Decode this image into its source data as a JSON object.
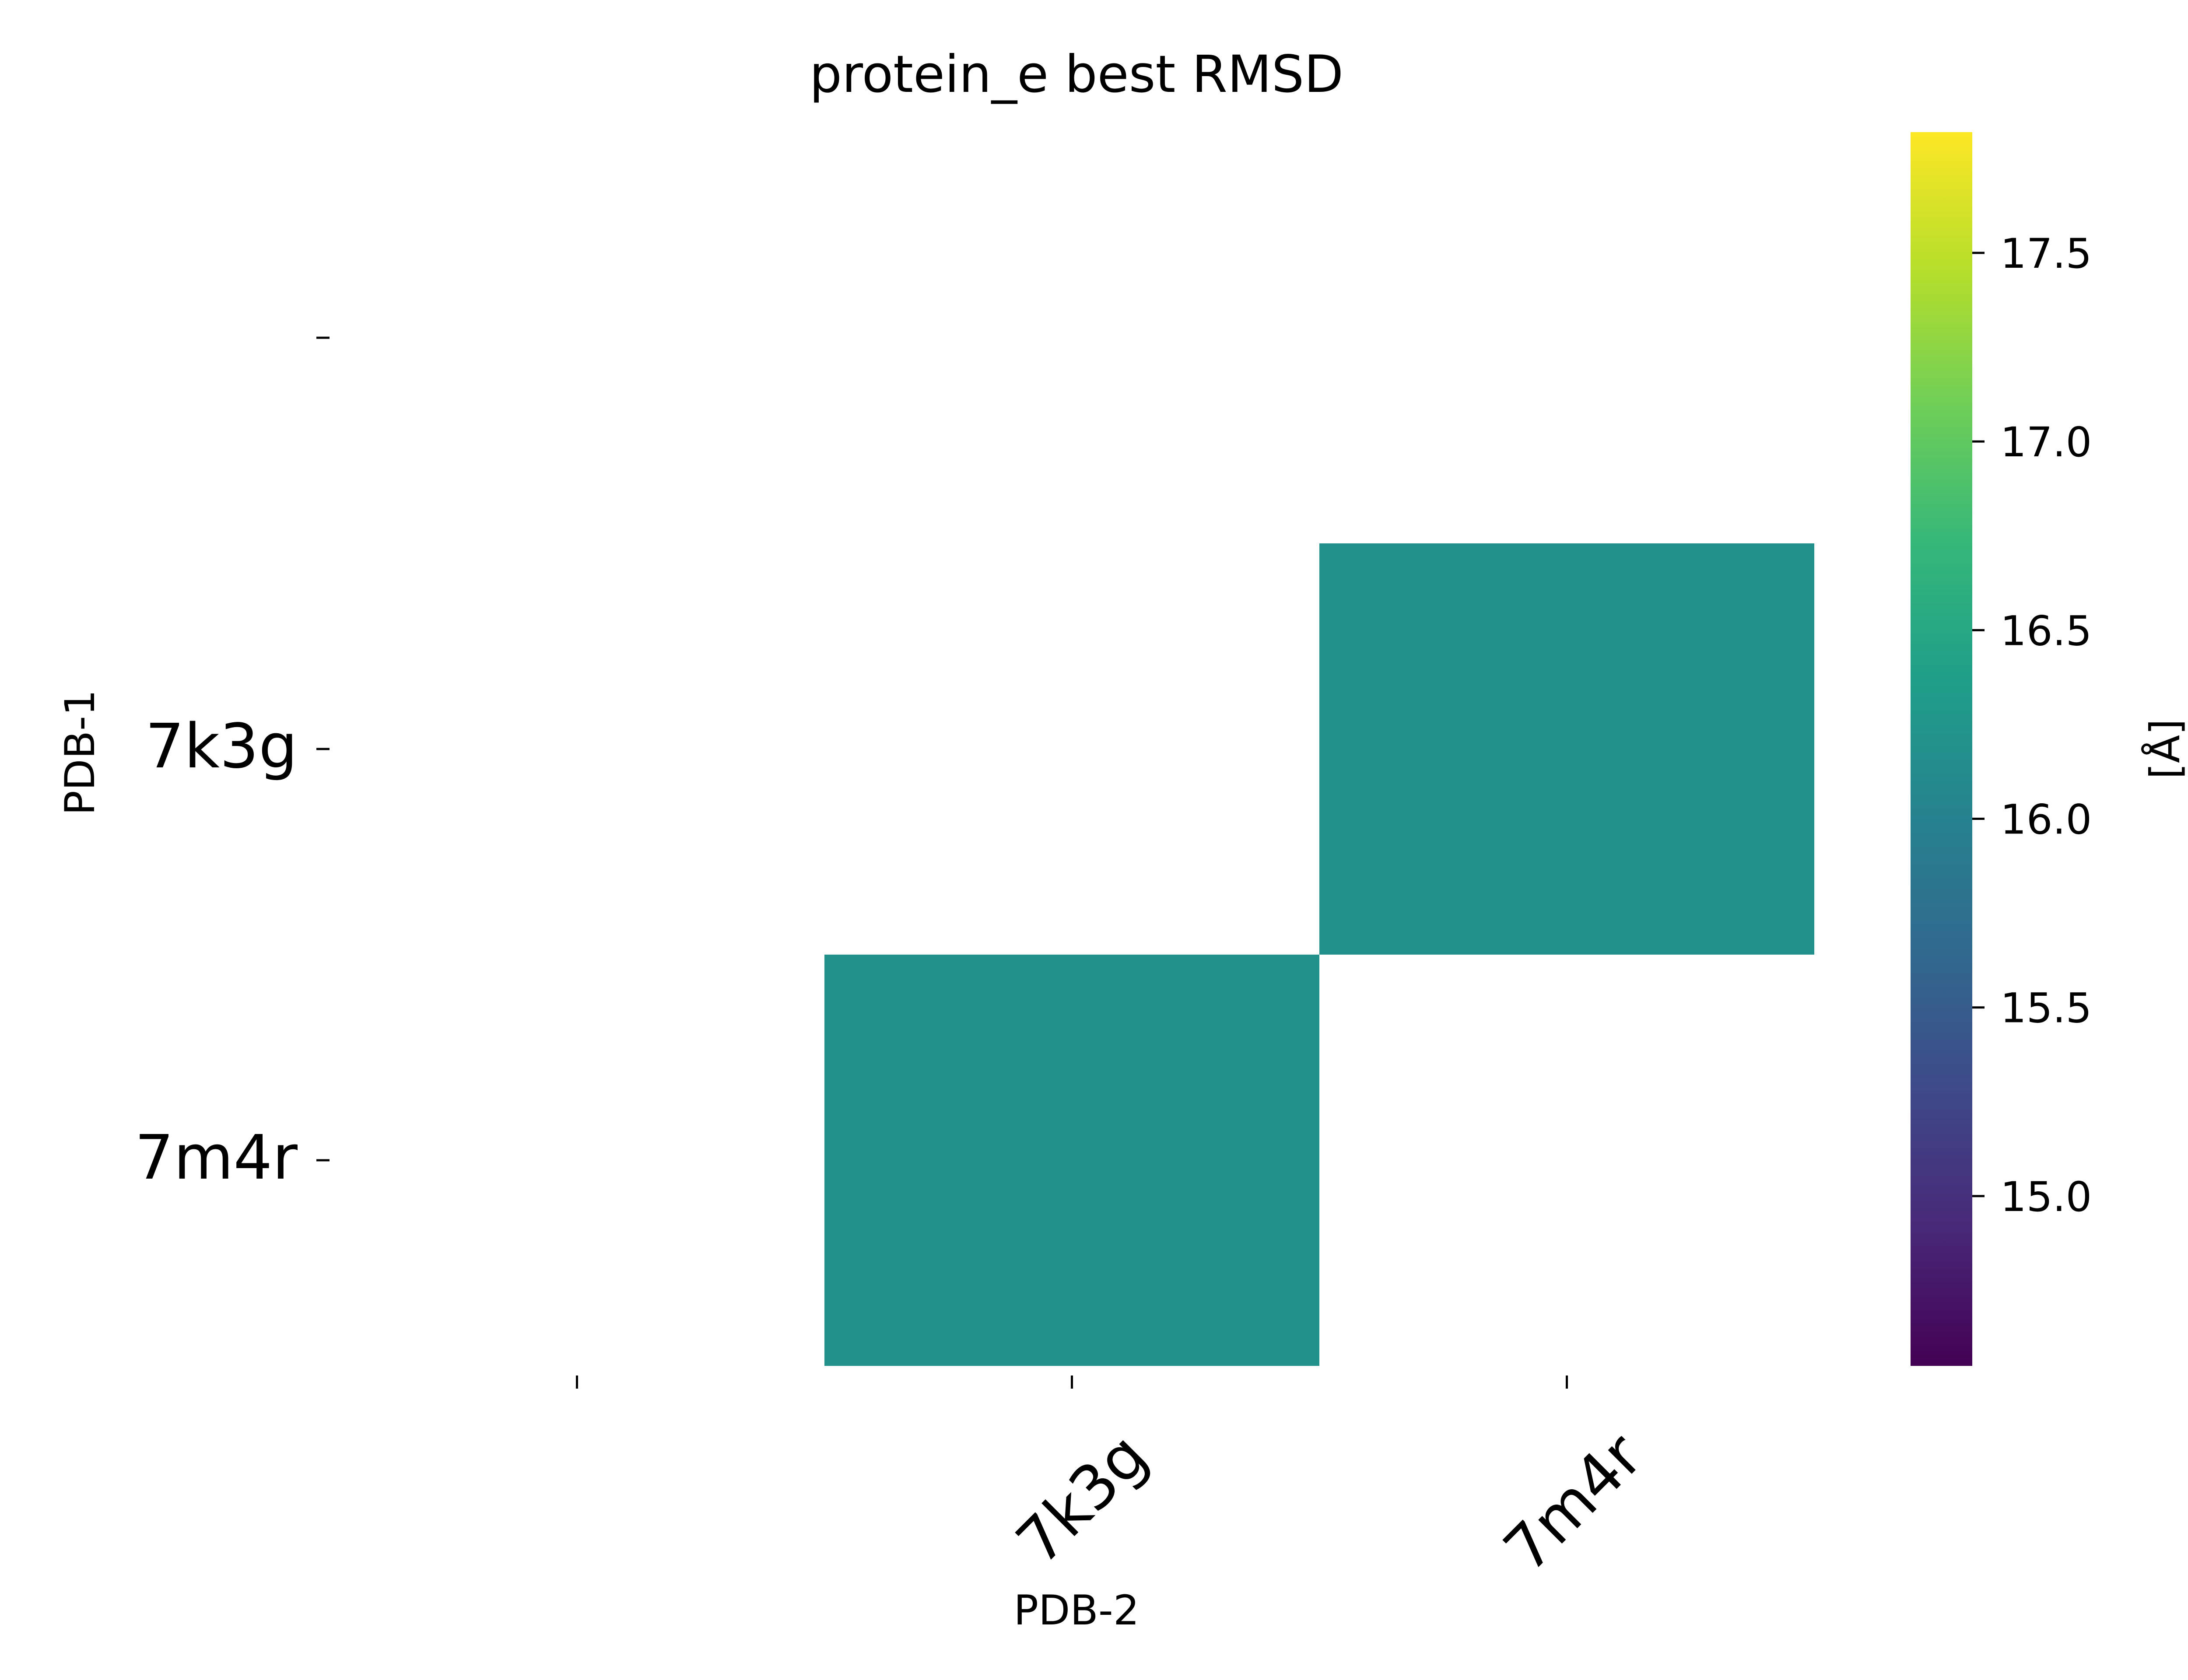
{
  "chart_data": {
    "type": "heatmap",
    "title": "protein_e best RMSD",
    "xlabel": "PDB-2",
    "ylabel": "PDB-1",
    "x_categories": [
      "",
      "7k3g",
      "7m4r"
    ],
    "y_categories": [
      "",
      "7k3g",
      "7m4r"
    ],
    "values": [
      [
        null,
        null,
        null
      ],
      [
        null,
        null,
        16.2
      ],
      [
        null,
        16.2,
        null
      ]
    ],
    "colormap": "viridis",
    "colorbar": {
      "label": "[Å]",
      "range": [
        14.55,
        17.82
      ],
      "ticks": [
        15.0,
        15.5,
        16.0,
        16.5,
        17.0,
        17.5
      ],
      "tick_labels": [
        "15.0",
        "15.5",
        "16.0",
        "16.5",
        "17.0",
        "17.5"
      ]
    },
    "x_tick_rotation": 45,
    "grid": false,
    "colors": {
      "viridis_stops": [
        "#440154",
        "#482878",
        "#3e4989",
        "#31688e",
        "#26828e",
        "#1f9e89",
        "#35b779",
        "#6ece58",
        "#b5de2b",
        "#fde725"
      ],
      "background": "#ffffff"
    }
  }
}
